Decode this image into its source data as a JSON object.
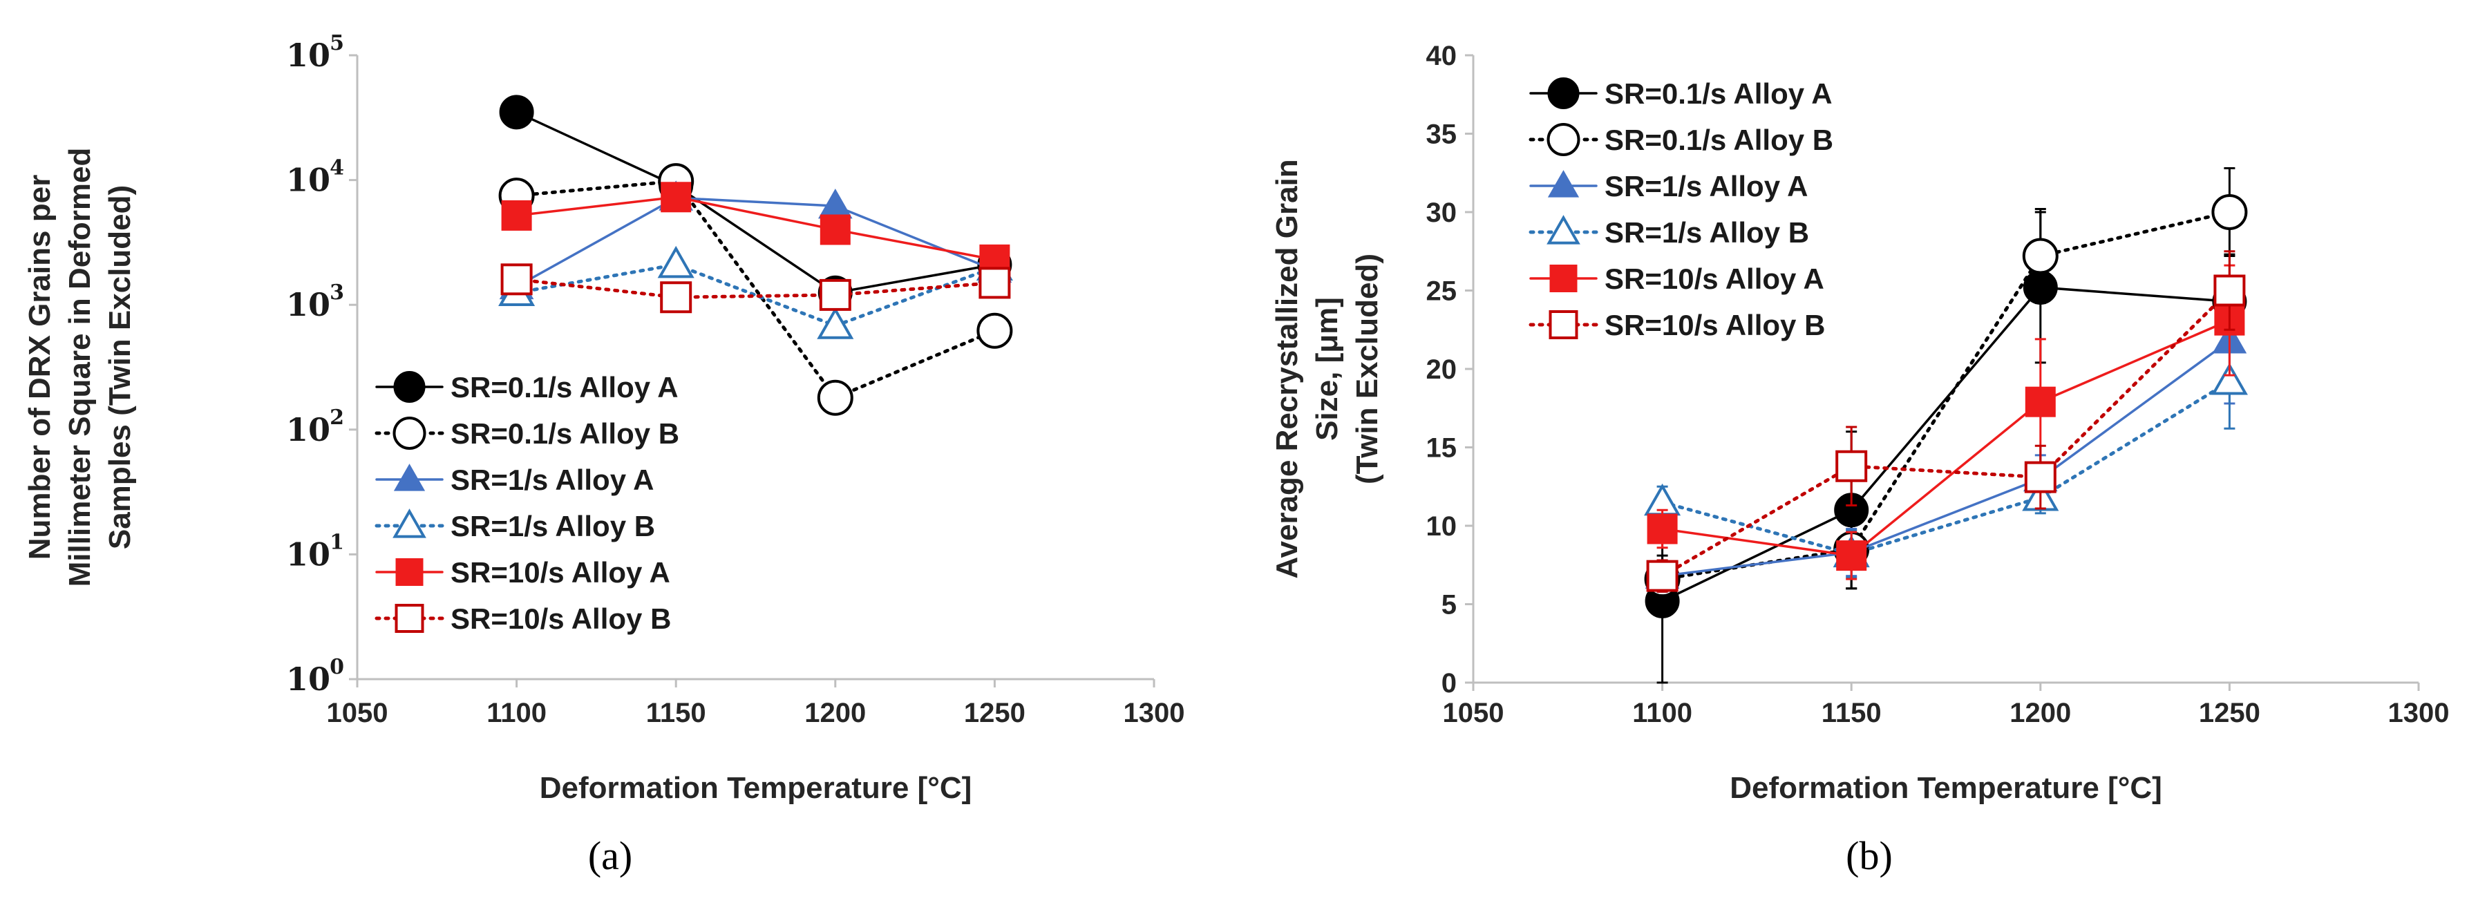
{
  "figure": {
    "panel_labels": [
      "(a)",
      "(b)"
    ]
  },
  "colors": {
    "black": "#000000",
    "blue": "#4472C4",
    "blue_dark": "#2E75B6",
    "red": "#EE1C1C",
    "red_dark": "#C00000",
    "axis": "#bfbfbf",
    "text": "#262626"
  },
  "chart_data": [
    {
      "type": "line",
      "panel": "(a)",
      "title": "",
      "xlabel": "Deformation Temperature [°C]",
      "ylabel_lines": [
        "Number of DRX Grains per",
        "Millimeter Square in Deformed",
        "Samples (Twin Excluded)"
      ],
      "yscale": "log",
      "xlim": [
        1050,
        1300
      ],
      "ylim": [
        1,
        100000
      ],
      "xticks": [
        1050,
        1100,
        1150,
        1200,
        1250,
        1300
      ],
      "yticks": [
        {
          "base": "10",
          "exp": "0",
          "value": 1
        },
        {
          "base": "10",
          "exp": "1",
          "value": 10
        },
        {
          "base": "10",
          "exp": "2",
          "value": 100
        },
        {
          "base": "10",
          "exp": "3",
          "value": 1000
        },
        {
          "base": "10",
          "exp": "4",
          "value": 10000
        },
        {
          "base": "10",
          "exp": "5",
          "value": 100000
        }
      ],
      "legend_position": "lower-left",
      "series": [
        {
          "name": "SR=0.1/s Alloy A",
          "color": "#000000",
          "marker": "circle",
          "filled": true,
          "dash": "solid",
          "x": [
            1100,
            1150,
            1200,
            1250
          ],
          "values": [
            35000,
            9000,
            1250,
            2100
          ]
        },
        {
          "name": "SR=0.1/s Alloy B",
          "color": "#000000",
          "marker": "circle",
          "filled": false,
          "dash": "dotted",
          "x": [
            1100,
            1150,
            1200,
            1250
          ],
          "values": [
            7500,
            9800,
            180,
            620
          ]
        },
        {
          "name": "SR=1/s Alloy A",
          "color": "#4472C4",
          "marker": "triangle",
          "filled": true,
          "dash": "solid",
          "x": [
            1100,
            1150,
            1200,
            1250
          ],
          "values": [
            1400,
            7200,
            6200,
            1900
          ]
        },
        {
          "name": "SR=1/s Alloy B",
          "color": "#2E75B6",
          "marker": "triangle",
          "filled": false,
          "dash": "dotted",
          "x": [
            1100,
            1150,
            1200,
            1250
          ],
          "values": [
            1250,
            2100,
            680,
            2000
          ]
        },
        {
          "name": "SR=10/s Alloy A",
          "color": "#EE1C1C",
          "marker": "square",
          "filled": true,
          "dash": "solid",
          "x": [
            1100,
            1150,
            1200,
            1250
          ],
          "values": [
            5200,
            7300,
            4000,
            2300
          ]
        },
        {
          "name": "SR=10/s Alloy B",
          "color": "#C00000",
          "marker": "square",
          "filled": false,
          "dash": "dotted",
          "x": [
            1100,
            1150,
            1200,
            1250
          ],
          "values": [
            1600,
            1150,
            1200,
            1500
          ]
        }
      ]
    },
    {
      "type": "line",
      "panel": "(b)",
      "title": "",
      "xlabel": "Deformation Temperature [°C]",
      "ylabel_lines": [
        "Average Recrystallized Grain",
        "Size, [μm]",
        "(Twin Excluded)"
      ],
      "yscale": "linear",
      "xlim": [
        1050,
        1300
      ],
      "ylim": [
        0,
        40
      ],
      "xticks": [
        1050,
        1100,
        1150,
        1200,
        1250,
        1300
      ],
      "yticks": [
        0,
        5,
        10,
        15,
        20,
        25,
        30,
        35,
        40
      ],
      "legend_position": "top-left",
      "series": [
        {
          "name": "SR=0.1/s Alloy A",
          "color": "#000000",
          "marker": "circle",
          "filled": true,
          "dash": "solid",
          "x": [
            1100,
            1150,
            1200,
            1250
          ],
          "values": [
            5.2,
            11.0,
            25.2,
            24.3
          ],
          "errors": [
            5.2,
            5.0,
            4.8,
            3.0
          ]
        },
        {
          "name": "SR=0.1/s Alloy B",
          "color": "#000000",
          "marker": "circle",
          "filled": false,
          "dash": "dotted",
          "x": [
            1100,
            1150,
            1200,
            1250
          ],
          "values": [
            6.6,
            8.5,
            27.2,
            30.0
          ],
          "errors": [
            1.5,
            2.5,
            3.0,
            2.8
          ]
        },
        {
          "name": "SR=1/s Alloy A",
          "color": "#4472C4",
          "marker": "triangle",
          "filled": true,
          "dash": "solid",
          "x": [
            1100,
            1150,
            1200,
            1250
          ],
          "values": [
            6.8,
            8.3,
            13.0,
            21.8
          ],
          "errors": [
            1.0,
            1.5,
            1.5,
            4.0
          ]
        },
        {
          "name": "SR=1/s Alloy B",
          "color": "#2E75B6",
          "marker": "triangle",
          "filled": false,
          "dash": "dotted",
          "x": [
            1100,
            1150,
            1200,
            1250
          ],
          "values": [
            11.5,
            8.2,
            11.8,
            19.2
          ],
          "errors": [
            1.0,
            1.5,
            1.0,
            3.0
          ]
        },
        {
          "name": "SR=10/s Alloy A",
          "color": "#EE1C1C",
          "marker": "square",
          "filled": true,
          "dash": "solid",
          "x": [
            1100,
            1150,
            1200,
            1250
          ],
          "values": [
            9.8,
            8.1,
            17.9,
            23.1
          ],
          "errors": [
            1.2,
            1.5,
            4.0,
            3.5
          ]
        },
        {
          "name": "SR=10/s Alloy B",
          "color": "#C00000",
          "marker": "square",
          "filled": false,
          "dash": "dotted",
          "x": [
            1100,
            1150,
            1200,
            1250
          ],
          "values": [
            6.8,
            13.8,
            13.1,
            25.0
          ],
          "errors": [
            1.0,
            2.5,
            2.0,
            2.5
          ]
        }
      ]
    }
  ]
}
